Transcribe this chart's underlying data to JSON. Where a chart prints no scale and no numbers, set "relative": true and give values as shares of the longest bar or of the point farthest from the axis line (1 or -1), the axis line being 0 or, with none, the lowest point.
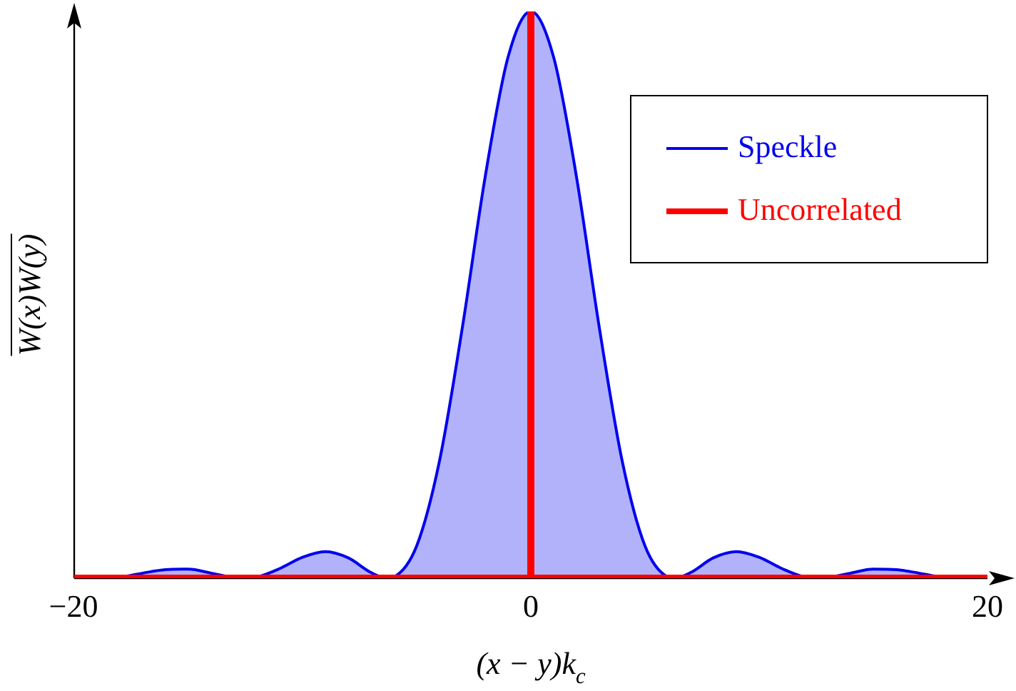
{
  "chart_data": {
    "type": "area",
    "xlabel": "(x − y)k$_{c}$",
    "ylabel": "W(x)W(y)",
    "relative": true,
    "xlim": [
      -20,
      20
    ],
    "xticks": [
      {
        "value": -20,
        "label": "−20"
      },
      0,
      20
    ],
    "grid": false,
    "legend": "top right",
    "series": [
      {
        "name": "Speckle",
        "color": "#0000ee",
        "x": [
          -20,
          -19,
          -18.85,
          -18,
          -17,
          -16,
          -15,
          -14,
          -13,
          -12.57,
          -12,
          -11,
          -10,
          -9,
          -8,
          -7,
          -6.28,
          -6,
          -5,
          -4,
          -3,
          -2,
          -1,
          0,
          1,
          2,
          3,
          4,
          5,
          6,
          6.28,
          7,
          8,
          9,
          10,
          11,
          12,
          12.57,
          13,
          14,
          15,
          16,
          17,
          18,
          18.85,
          19,
          20
        ],
        "values": [
          0.003,
          0.0001,
          0,
          0.002,
          0.009,
          0.015,
          0.016,
          0.009,
          0.001,
          0,
          0.002,
          0.017,
          0.037,
          0.047,
          0.036,
          0.01,
          0,
          0.002,
          0.057,
          0.207,
          0.442,
          0.708,
          0.919,
          1,
          0.919,
          0.708,
          0.442,
          0.207,
          0.057,
          0.002,
          0,
          0.01,
          0.036,
          0.047,
          0.037,
          0.017,
          0.002,
          0,
          0.001,
          0.009,
          0.016,
          0.015,
          0.009,
          0.002,
          0,
          0.0001,
          0.003
        ]
      },
      {
        "name": "Uncorrelated",
        "type": "line",
        "color": "#ff0000",
        "x": [
          0,
          0
        ],
        "values": [
          0,
          1
        ]
      },
      {
        "type": "line",
        "color": "#ff0000",
        "x": [
          -20,
          20
        ],
        "values": [
          0,
          0
        ]
      }
    ]
  }
}
